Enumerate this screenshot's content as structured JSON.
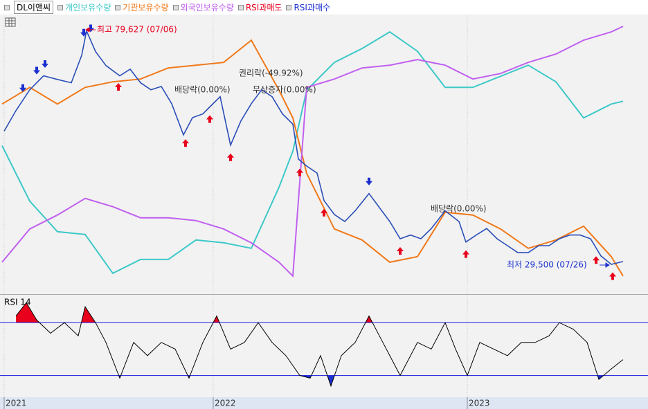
{
  "chart_data": [
    {
      "type": "line",
      "series": [
        {
          "name": "DL이앤씨",
          "color": "#2a4db8",
          "x": [
            3,
            20,
            40,
            60,
            80,
            100,
            115,
            122,
            135,
            150,
            170,
            185,
            200,
            215,
            230,
            245,
            262,
            275,
            290,
            300,
            315,
            330,
            345,
            360,
            375,
            390,
            405,
            420,
            428,
            440,
            455,
            465,
            480,
            495,
            510,
            530,
            545,
            560,
            575,
            590,
            605,
            620,
            640,
            660,
            670,
            685,
            700,
            715,
            730,
            745,
            760,
            775,
            790,
            805,
            820,
            835,
            850,
            865,
            880,
            897
          ],
          "values": [
            58100,
            62500,
            67000,
            70000,
            69200,
            68500,
            74400,
            79627,
            75200,
            72200,
            70000,
            71400,
            68500,
            67000,
            67700,
            64000,
            57300,
            61000,
            61800,
            63300,
            65500,
            55100,
            60300,
            64000,
            67000,
            65500,
            61800,
            59600,
            52100,
            50600,
            49100,
            43200,
            40200,
            38700,
            41000,
            44700,
            41700,
            38700,
            35000,
            35800,
            35000,
            37200,
            41000,
            38700,
            34300,
            35800,
            37200,
            35000,
            33500,
            32000,
            32000,
            33500,
            33500,
            35000,
            35800,
            35800,
            35000,
            31300,
            29500,
            30100
          ]
        },
        {
          "name": "개인보유수량",
          "color": "#3cc8c8",
          "axis": "y2",
          "x": [
            0,
            40,
            80,
            120,
            160,
            200,
            240,
            280,
            320,
            360,
            400,
            420,
            440,
            480,
            520,
            560,
            600,
            640,
            680,
            720,
            760,
            800,
            840,
            880,
            897
          ],
          "values": [
            53,
            33,
            22,
            21,
            7,
            12,
            12,
            19,
            18,
            16,
            38,
            51,
            73,
            83,
            88,
            94,
            87,
            74,
            74,
            78,
            82,
            76,
            63,
            68,
            69
          ]
        },
        {
          "name": "기관보유수량",
          "color": "#f07818",
          "axis": "y2",
          "x": [
            0,
            40,
            80,
            120,
            160,
            200,
            240,
            280,
            320,
            360,
            400,
            420,
            440,
            480,
            520,
            560,
            600,
            640,
            680,
            720,
            760,
            800,
            840,
            880,
            897
          ],
          "values": [
            68,
            74,
            68,
            74,
            76,
            77,
            81,
            82,
            83,
            91,
            73,
            63,
            43,
            23,
            19,
            11,
            13,
            29,
            28,
            23,
            16,
            19,
            24,
            13,
            6
          ]
        },
        {
          "name": "외국인보유수량",
          "color": "#c060f0",
          "axis": "y2",
          "x": [
            0,
            40,
            80,
            120,
            160,
            200,
            240,
            280,
            320,
            360,
            400,
            420,
            440,
            480,
            520,
            560,
            600,
            640,
            680,
            720,
            760,
            800,
            840,
            880,
            897
          ],
          "values": [
            11,
            23,
            28,
            34,
            31,
            27,
            27,
            26,
            23,
            18,
            11,
            6,
            74,
            77,
            81,
            82,
            84,
            82,
            77,
            79,
            83,
            86,
            91,
            94,
            96
          ]
        }
      ],
      "signals": [
        {
          "name": "RSI과매도",
          "color": "#e8001c",
          "x": [
            168,
            265,
            300,
            330,
            430,
            465,
            575,
            670,
            858,
            882
          ]
        },
        {
          "name": "RSI과매수",
          "color": "#1a30d0",
          "x": [
            30,
            50,
            62,
            118,
            128,
            530
          ]
        }
      ],
      "annotations": [
        "최고 79,627 (07/06)",
        "최저 29,500 (07/26)",
        "권리락(-49.92%)",
        "배당락(0.00%)",
        "무상증자(0.00%)",
        "배당락(0.00%)"
      ],
      "ylim": [
        23400,
        83000
      ],
      "y2lim": [
        0,
        100
      ],
      "xlim": [
        0,
        930
      ],
      "xticks": [
        {
          "value": 3,
          "label": "2021"
        },
        {
          "value": 305,
          "label": "2022"
        },
        {
          "value": 672,
          "label": "2023"
        }
      ],
      "grid": true
    },
    {
      "type": "line",
      "title": "RSI 14",
      "color": "#000000",
      "x": [
        20,
        35,
        50,
        70,
        90,
        110,
        120,
        135,
        150,
        170,
        190,
        210,
        230,
        250,
        270,
        290,
        310,
        330,
        350,
        370,
        390,
        410,
        430,
        445,
        460,
        475,
        490,
        510,
        530,
        550,
        575,
        600,
        620,
        640,
        655,
        672,
        690,
        710,
        730,
        750,
        770,
        790,
        805,
        825,
        845,
        862,
        880,
        897
      ],
      "values": [
        75,
        85,
        72,
        62,
        70,
        60,
        82,
        70,
        55,
        28,
        55,
        45,
        55,
        50,
        28,
        55,
        75,
        50,
        55,
        70,
        55,
        45,
        30,
        28,
        45,
        22,
        45,
        55,
        75,
        55,
        30,
        55,
        50,
        70,
        50,
        30,
        55,
        50,
        45,
        55,
        55,
        60,
        70,
        65,
        55,
        27,
        35,
        42
      ],
      "levels": [
        70,
        30
      ],
      "level_color": "#3030e0",
      "over_color": "#e8001c",
      "under_color": "#1a30d0",
      "ylim": [
        13,
        90
      ],
      "xlim": [
        0,
        930
      ]
    }
  ]
}
